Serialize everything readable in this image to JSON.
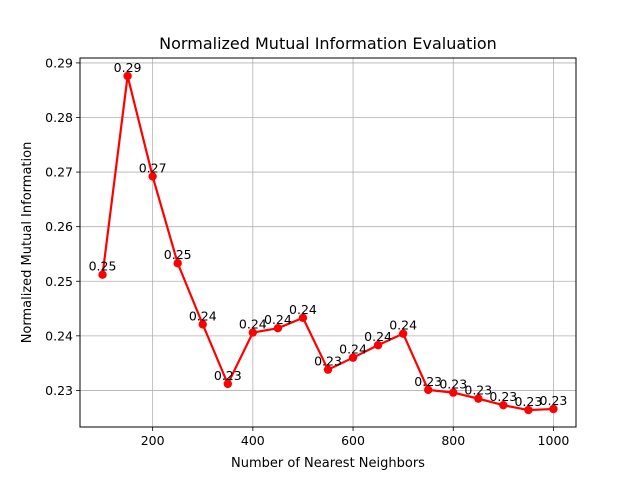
{
  "chart_data": {
    "type": "line",
    "title": "Normalized Mutual Information Evaluation",
    "xlabel": "Number of Nearest Neighbors",
    "ylabel": "Normalized Mutual Information",
    "xlim": [
      55,
      1045
    ],
    "ylim": [
      0.2233,
      0.2909
    ],
    "xticks": [
      200,
      400,
      600,
      800,
      1000
    ],
    "xtick_labels": [
      "200",
      "400",
      "600",
      "800",
      "1000"
    ],
    "yticks": [
      0.23,
      0.24,
      0.25,
      0.26,
      0.27,
      0.28,
      0.29
    ],
    "ytick_labels": [
      "0.23",
      "0.24",
      "0.25",
      "0.26",
      "0.27",
      "0.28",
      "0.29"
    ],
    "grid": true,
    "line_color": "#ff0000",
    "series": [
      {
        "x": [
          100,
          150,
          200,
          250,
          300,
          350,
          400,
          450,
          500,
          550,
          600,
          650,
          700,
          750,
          800,
          850,
          900,
          950,
          1000
        ],
        "values": [
          0.2512,
          0.2876,
          0.2692,
          0.2533,
          0.2421,
          0.2312,
          0.2406,
          0.2414,
          0.2433,
          0.2338,
          0.236,
          0.2383,
          0.2404,
          0.2301,
          0.2296,
          0.2285,
          0.2273,
          0.2264,
          0.2266
        ],
        "data_labels": [
          "0.25",
          "0.29",
          "0.27",
          "0.25",
          "0.24",
          "0.23",
          "0.24",
          "0.24",
          "0.24",
          "0.23",
          "0.24",
          "0.24",
          "0.24",
          "0.23",
          "0.23",
          "0.23",
          "0.23",
          "0.23",
          "0.23"
        ]
      }
    ]
  }
}
